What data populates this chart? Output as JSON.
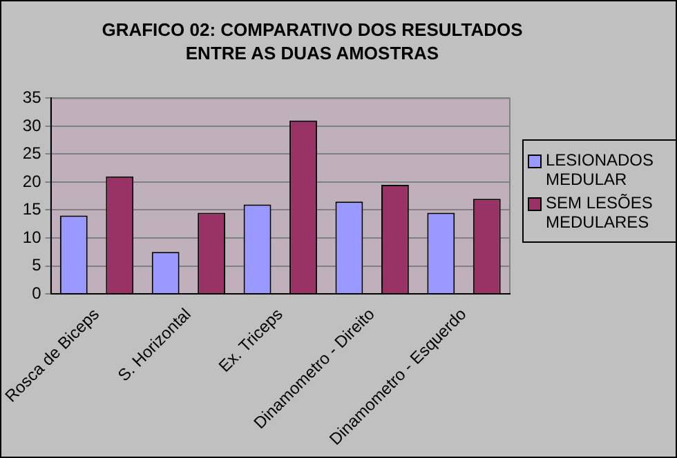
{
  "chart_data": {
    "type": "bar",
    "title": "GRAFICO 02: COMPARATIVO DOS RESULTADOS ENTRE AS DUAS AMOSTRAS",
    "categories": [
      "Rosca de Biceps",
      "S. Horizontal",
      "Ex. Triceps",
      "Dinamometro - Direito",
      "Dinamometro - Esquerdo"
    ],
    "series": [
      {
        "name": "LESIONADOS MEDULAR",
        "color": "#9999ff",
        "values": [
          14,
          7.5,
          16,
          16.5,
          14.5
        ]
      },
      {
        "name": "SEM LESÕES MEDULARES",
        "color": "#993366",
        "values": [
          21,
          14.5,
          31,
          19.5,
          17
        ]
      }
    ],
    "ylim": [
      0,
      35
    ],
    "yticks": [
      0,
      5,
      10,
      15,
      20,
      25,
      30,
      35
    ],
    "grid": "y",
    "legend": "right"
  }
}
